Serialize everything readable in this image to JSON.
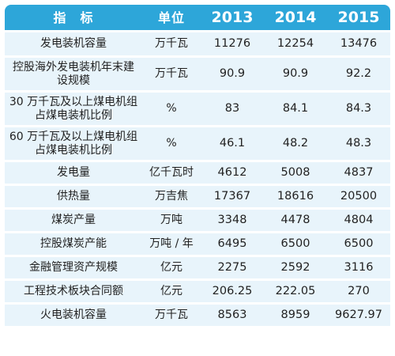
{
  "header": {
    "indicator": "指　标",
    "unit": "单位",
    "years": [
      "2013",
      "2014",
      "2015"
    ]
  },
  "rows": [
    {
      "name": "发电装机容量",
      "unit": "万千瓦",
      "values": [
        "11276",
        "12254",
        "13476"
      ]
    },
    {
      "name": "控股海外发电装机年末建设规模",
      "unit": "万千瓦",
      "values": [
        "90.9",
        "90.9",
        "92.2"
      ]
    },
    {
      "name": "30 万千瓦及以上煤电机组占煤电装机比例",
      "unit": "%",
      "values": [
        "83",
        "84.1",
        "84.3"
      ]
    },
    {
      "name": "60 万千瓦及以上煤电机组占煤电装机比例",
      "unit": "%",
      "values": [
        "46.1",
        "48.2",
        "48.3"
      ]
    },
    {
      "name": "发电量",
      "unit": "亿千瓦时",
      "values": [
        "4612",
        "5008",
        "4837"
      ]
    },
    {
      "name": "供热量",
      "unit": "万吉焦",
      "values": [
        "17367",
        "18616",
        "20500"
      ]
    },
    {
      "name": "煤炭产量",
      "unit": "万吨",
      "values": [
        "3348",
        "4478",
        "4804"
      ]
    },
    {
      "name": "控股煤炭产能",
      "unit": "万吨 / 年",
      "values": [
        "6495",
        "6500",
        "6500"
      ]
    },
    {
      "name": "金融管理资产规模",
      "unit": "亿元",
      "values": [
        "2275",
        "2592",
        "3116"
      ]
    },
    {
      "name": "工程技术板块合同额",
      "unit": "亿元",
      "values": [
        "206.25",
        "222.05",
        "270"
      ]
    },
    {
      "name": "火电装机容量",
      "unit": "万千瓦",
      "values": [
        "8563",
        "8959",
        "9627.97"
      ]
    }
  ]
}
